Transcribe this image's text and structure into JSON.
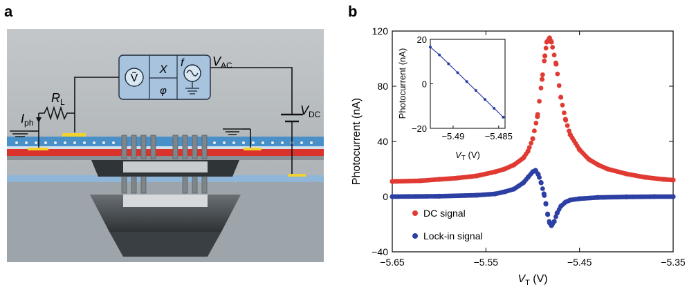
{
  "panels": {
    "a": {
      "letter": "a",
      "labels": {
        "voltmeter_symbol": "Ṽ",
        "lockin_x": "X",
        "lockin_phi": "φ",
        "source_f": "f",
        "v_ac_main": "V",
        "v_ac_sub": "AC",
        "v_dc_main": "V",
        "v_dc_sub": "DC",
        "r_load_main": "R",
        "r_load_sub": "L",
        "i_ph_main": "I",
        "i_ph_sub": "ph"
      },
      "colors": {
        "background": "#b7bcbf",
        "instrument_box": "#a7c3de",
        "top_cladding": "#4a90c8",
        "silicon_layer": "#d9332b",
        "contact_pads": "#f2d230"
      }
    },
    "b": {
      "letter": "b",
      "x_label_main": "V",
      "x_label_sub": "T",
      "x_label_unit": " (V)",
      "y_label": "Photocurrent (nA)",
      "x_ticks": [
        "−5.65",
        "−5.55",
        "−5.45",
        "−5.35"
      ],
      "y_ticks": [
        "−40",
        "0",
        "40",
        "80",
        "120"
      ],
      "legend": {
        "dc": "DC signal",
        "lockin": "Lock-in signal"
      },
      "inset": {
        "y_label": "Photocurrent (nA)",
        "x_label_main": "V",
        "x_label_sub": "T",
        "x_label_unit": " (V)",
        "x_ticks": [
          "−5.49",
          "−5.485"
        ],
        "y_ticks": [
          "−20",
          "0",
          "20"
        ]
      }
    }
  },
  "chart_data": {
    "type": "scatter",
    "title": "",
    "xlabel": "V_T (V)",
    "ylabel": "Photocurrent (nA)",
    "xlim": [
      -5.65,
      -5.35
    ],
    "ylim": [
      -40,
      120
    ],
    "grid": false,
    "legend_position": "bottom-left",
    "series": [
      {
        "name": "DC signal",
        "color": "#e03a33",
        "marker": "circle",
        "x": [
          -5.65,
          -5.62,
          -5.6,
          -5.58,
          -5.56,
          -5.54,
          -5.53,
          -5.52,
          -5.51,
          -5.505,
          -5.5,
          -5.495,
          -5.49,
          -5.487,
          -5.485,
          -5.482,
          -5.48,
          -5.475,
          -5.47,
          -5.465,
          -5.46,
          -5.45,
          -5.44,
          -5.43,
          -5.42,
          -5.4,
          -5.38,
          -5.36,
          -5.35
        ],
        "y": [
          11,
          11.5,
          12.5,
          13.5,
          15,
          18,
          20,
          23,
          28,
          33,
          42,
          58,
          85,
          102,
          112,
          115,
          112,
          96,
          72,
          56,
          45,
          34,
          27,
          23,
          20,
          16.5,
          14,
          12.5,
          12
        ]
      },
      {
        "name": "Lock-in signal",
        "color": "#2c3fa3",
        "marker": "circle",
        "x": [
          -5.65,
          -5.6,
          -5.56,
          -5.54,
          -5.53,
          -5.52,
          -5.51,
          -5.505,
          -5.5,
          -5.497,
          -5.494,
          -5.491,
          -5.488,
          -5.486,
          -5.484,
          -5.482,
          -5.48,
          -5.477,
          -5.474,
          -5.47,
          -5.465,
          -5.46,
          -5.45,
          -5.43,
          -5.4,
          -5.37,
          -5.35
        ],
        "y": [
          0,
          0.3,
          1,
          2,
          3.5,
          5.5,
          10,
          14,
          18,
          19,
          16,
          10,
          2,
          -5,
          -13,
          -19,
          -21,
          -18,
          -12,
          -7,
          -4,
          -2.5,
          -1.5,
          -0.6,
          -0.2,
          0,
          0
        ]
      }
    ],
    "inset": {
      "type": "line",
      "xlabel": "V_T (V)",
      "ylabel": "Photocurrent (nA)",
      "xlim": [
        -5.4925,
        -5.4843
      ],
      "ylim": [
        -20,
        20
      ],
      "series": [
        {
          "name": "Lock-in signal",
          "color": "#2c3fa3",
          "x": [
            -5.4925,
            -5.4915,
            -5.4905,
            -5.4895,
            -5.4885,
            -5.4875,
            -5.4865,
            -5.4855,
            -5.4845
          ],
          "y": [
            16.5,
            13,
            9,
            5,
            1,
            -3,
            -7,
            -11,
            -15
          ]
        }
      ]
    }
  }
}
